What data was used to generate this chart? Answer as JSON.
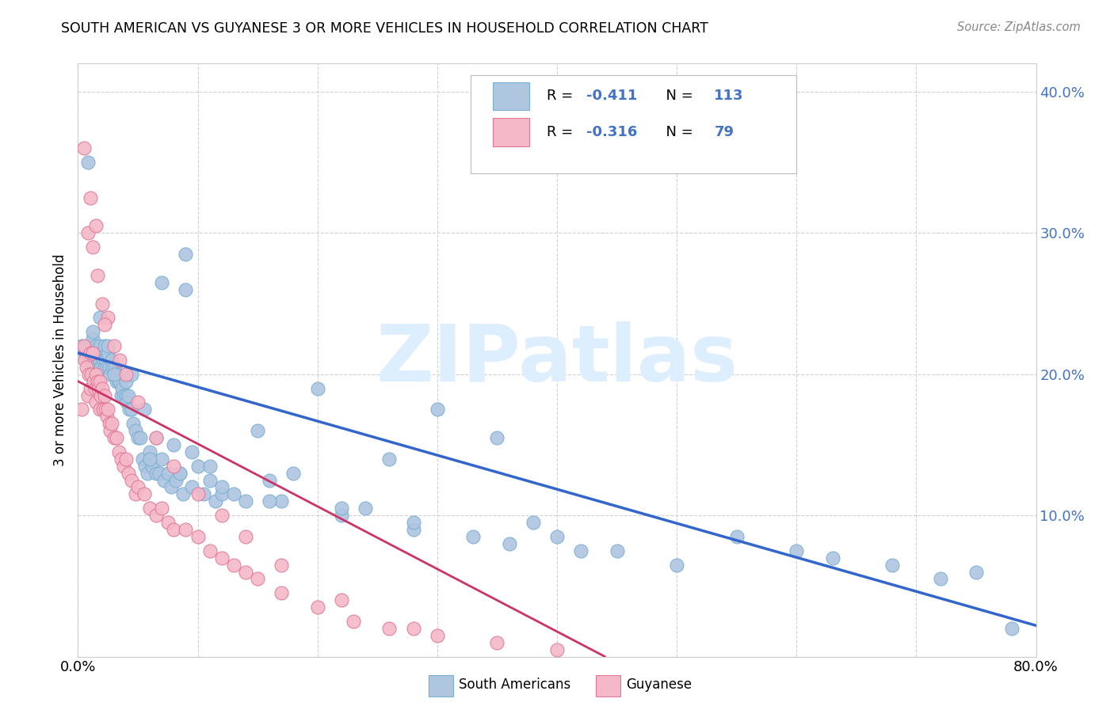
{
  "title": "SOUTH AMERICAN VS GUYANESE 3 OR MORE VEHICLES IN HOUSEHOLD CORRELATION CHART",
  "source": "Source: ZipAtlas.com",
  "ylabel": "3 or more Vehicles in Household",
  "xlim": [
    0.0,
    0.8
  ],
  "ylim": [
    0.0,
    0.42
  ],
  "blue_color": "#aec6e0",
  "blue_edge": "#7aafd4",
  "pink_color": "#f4b8c8",
  "pink_edge": "#e07898",
  "line_blue": "#3366cc",
  "line_pink": "#cc3366",
  "watermark_text": "ZIPatlas",
  "watermark_color": "#ddeeff",
  "legend_r_blue": "-0.411",
  "legend_n_blue": "113",
  "legend_r_pink": "-0.316",
  "legend_n_pink": "79",
  "legend_text_color": "#4472c4",
  "blue_line_start_y": 0.215,
  "blue_line_end_y": 0.022,
  "pink_line_start_y": 0.195,
  "pink_line_end_y": 0.0,
  "pink_line_end_x": 0.44,
  "blue_x": [
    0.003,
    0.006,
    0.008,
    0.009,
    0.01,
    0.011,
    0.012,
    0.013,
    0.014,
    0.015,
    0.015,
    0.016,
    0.017,
    0.018,
    0.018,
    0.019,
    0.02,
    0.021,
    0.022,
    0.022,
    0.023,
    0.024,
    0.025,
    0.026,
    0.027,
    0.028,
    0.029,
    0.03,
    0.031,
    0.032,
    0.033,
    0.034,
    0.035,
    0.036,
    0.037,
    0.038,
    0.04,
    0.041,
    0.042,
    0.043,
    0.045,
    0.046,
    0.048,
    0.05,
    0.052,
    0.054,
    0.056,
    0.058,
    0.06,
    0.062,
    0.065,
    0.068,
    0.07,
    0.072,
    0.075,
    0.078,
    0.082,
    0.085,
    0.088,
    0.09,
    0.095,
    0.1,
    0.105,
    0.11,
    0.115,
    0.12,
    0.13,
    0.14,
    0.15,
    0.16,
    0.17,
    0.18,
    0.2,
    0.22,
    0.24,
    0.26,
    0.28,
    0.3,
    0.33,
    0.36,
    0.4,
    0.45,
    0.5,
    0.55,
    0.6,
    0.63,
    0.68,
    0.72,
    0.75,
    0.78,
    0.008,
    0.012,
    0.018,
    0.025,
    0.03,
    0.04,
    0.055,
    0.065,
    0.08,
    0.095,
    0.11,
    0.09,
    0.07,
    0.045,
    0.35,
    0.42,
    0.38,
    0.28,
    0.22,
    0.16,
    0.12,
    0.085,
    0.06
  ],
  "blue_y": [
    0.22,
    0.215,
    0.21,
    0.22,
    0.215,
    0.21,
    0.225,
    0.215,
    0.21,
    0.22,
    0.215,
    0.21,
    0.205,
    0.22,
    0.21,
    0.205,
    0.215,
    0.21,
    0.22,
    0.205,
    0.21,
    0.205,
    0.215,
    0.205,
    0.2,
    0.21,
    0.205,
    0.2,
    0.205,
    0.195,
    0.2,
    0.195,
    0.195,
    0.185,
    0.19,
    0.185,
    0.185,
    0.18,
    0.185,
    0.175,
    0.175,
    0.165,
    0.16,
    0.155,
    0.155,
    0.14,
    0.135,
    0.13,
    0.145,
    0.135,
    0.13,
    0.13,
    0.14,
    0.125,
    0.13,
    0.12,
    0.125,
    0.13,
    0.115,
    0.26,
    0.12,
    0.135,
    0.115,
    0.125,
    0.11,
    0.115,
    0.115,
    0.11,
    0.16,
    0.125,
    0.11,
    0.13,
    0.19,
    0.1,
    0.105,
    0.14,
    0.09,
    0.175,
    0.085,
    0.08,
    0.085,
    0.075,
    0.065,
    0.085,
    0.075,
    0.07,
    0.065,
    0.055,
    0.06,
    0.02,
    0.35,
    0.23,
    0.24,
    0.22,
    0.2,
    0.195,
    0.175,
    0.155,
    0.15,
    0.145,
    0.135,
    0.285,
    0.265,
    0.2,
    0.155,
    0.075,
    0.095,
    0.095,
    0.105,
    0.11,
    0.12,
    0.13,
    0.14
  ],
  "pink_x": [
    0.003,
    0.005,
    0.006,
    0.007,
    0.008,
    0.009,
    0.01,
    0.01,
    0.011,
    0.012,
    0.013,
    0.014,
    0.015,
    0.015,
    0.016,
    0.017,
    0.018,
    0.018,
    0.019,
    0.02,
    0.021,
    0.022,
    0.023,
    0.024,
    0.025,
    0.026,
    0.027,
    0.028,
    0.03,
    0.032,
    0.034,
    0.036,
    0.038,
    0.04,
    0.042,
    0.045,
    0.048,
    0.05,
    0.055,
    0.06,
    0.065,
    0.07,
    0.075,
    0.08,
    0.09,
    0.1,
    0.11,
    0.12,
    0.13,
    0.14,
    0.15,
    0.17,
    0.2,
    0.23,
    0.26,
    0.3,
    0.35,
    0.4,
    0.005,
    0.008,
    0.012,
    0.016,
    0.02,
    0.025,
    0.03,
    0.035,
    0.04,
    0.05,
    0.065,
    0.08,
    0.1,
    0.12,
    0.14,
    0.17,
    0.22,
    0.28,
    0.01,
    0.015,
    0.022
  ],
  "pink_y": [
    0.175,
    0.22,
    0.21,
    0.205,
    0.185,
    0.2,
    0.215,
    0.19,
    0.2,
    0.215,
    0.195,
    0.19,
    0.2,
    0.18,
    0.195,
    0.19,
    0.195,
    0.175,
    0.185,
    0.19,
    0.175,
    0.185,
    0.175,
    0.17,
    0.175,
    0.165,
    0.16,
    0.165,
    0.155,
    0.155,
    0.145,
    0.14,
    0.135,
    0.14,
    0.13,
    0.125,
    0.115,
    0.12,
    0.115,
    0.105,
    0.1,
    0.105,
    0.095,
    0.09,
    0.09,
    0.085,
    0.075,
    0.07,
    0.065,
    0.06,
    0.055,
    0.045,
    0.035,
    0.025,
    0.02,
    0.015,
    0.01,
    0.005,
    0.36,
    0.3,
    0.29,
    0.27,
    0.25,
    0.24,
    0.22,
    0.21,
    0.2,
    0.18,
    0.155,
    0.135,
    0.115,
    0.1,
    0.085,
    0.065,
    0.04,
    0.02,
    0.325,
    0.305,
    0.235
  ]
}
